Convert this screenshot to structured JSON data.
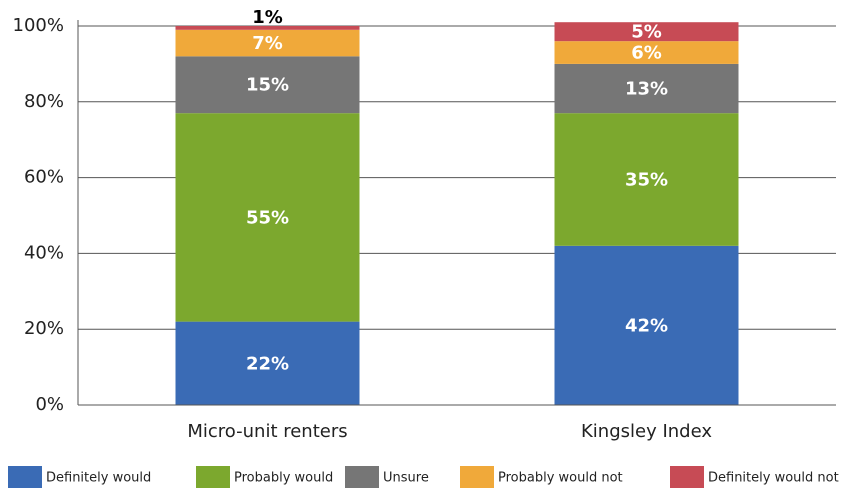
{
  "chart_data": {
    "type": "stacked_bar",
    "categories": [
      "Micro-unit renters",
      "Kingsley Index"
    ],
    "series": [
      {
        "name": "Definitely would",
        "color": "#3a6bb5",
        "values": [
          22,
          42
        ],
        "value_labels": [
          "22%",
          "42%"
        ]
      },
      {
        "name": "Probably would",
        "color": "#7ca82e",
        "values": [
          55,
          35
        ],
        "value_labels": [
          "55%",
          "35%"
        ]
      },
      {
        "name": "Unsure",
        "color": "#767676",
        "values": [
          15,
          13
        ],
        "value_labels": [
          "15%",
          "13%"
        ]
      },
      {
        "name": "Probably would not",
        "color": "#f0a93a",
        "values": [
          7,
          6
        ],
        "value_labels": [
          "7%",
          "6%"
        ]
      },
      {
        "name": "Definitely would not",
        "color": "#c74b55",
        "values": [
          1,
          5
        ],
        "value_labels": [
          "1%",
          "5%"
        ]
      }
    ],
    "ylim": [
      0,
      100
    ],
    "yticks": [
      {
        "value": 0,
        "label": "0%"
      },
      {
        "value": 20,
        "label": "20%"
      },
      {
        "value": 40,
        "label": "40%"
      },
      {
        "value": 60,
        "label": "60%"
      },
      {
        "value": 80,
        "label": "80%"
      },
      {
        "value": 100,
        "label": "100%"
      }
    ],
    "grid": true,
    "legend": "bottom"
  }
}
